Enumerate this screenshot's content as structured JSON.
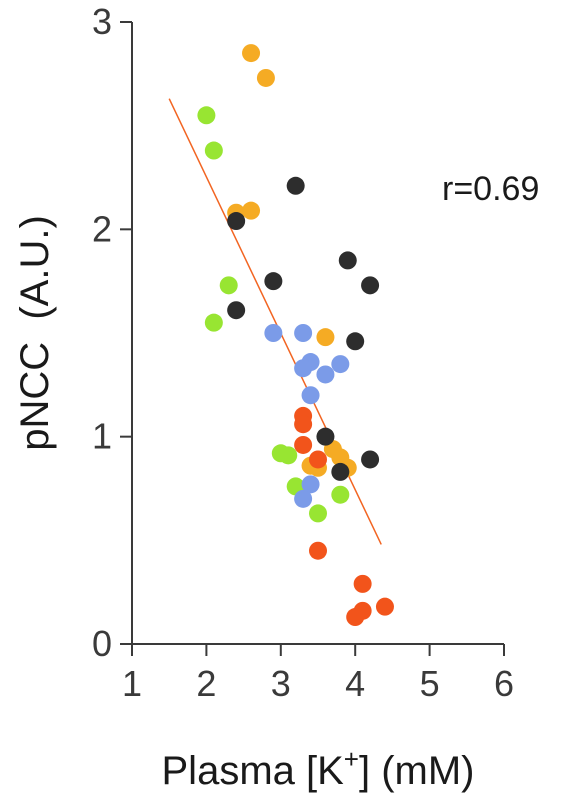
{
  "chart_data": {
    "type": "scatter",
    "xlabel": "Plasma [K+] (mM)",
    "ylabel": "pNCC  (A.U.)",
    "xlim": [
      1,
      6
    ],
    "ylim": [
      0,
      3
    ],
    "x_ticks": [
      "1",
      "2",
      "3",
      "4",
      "5",
      "6"
    ],
    "y_ticks": [
      "0",
      "1",
      "2",
      "3"
    ],
    "annotation": "r=0.69",
    "grid": false,
    "legend": "none",
    "trendline": {
      "x": [
        1.5,
        4.35
      ],
      "y": [
        2.63,
        0.48
      ],
      "color": "#f26522"
    },
    "series": [
      {
        "color": "#f5ab24",
        "points": [
          {
            "x": 2.6,
            "y": 2.85
          },
          {
            "x": 2.8,
            "y": 2.73
          },
          {
            "x": 2.4,
            "y": 2.08
          },
          {
            "x": 2.6,
            "y": 2.09
          },
          {
            "x": 3.6,
            "y": 1.48
          },
          {
            "x": 3.7,
            "y": 0.94
          },
          {
            "x": 3.8,
            "y": 0.9
          },
          {
            "x": 3.9,
            "y": 0.85
          },
          {
            "x": 3.5,
            "y": 0.85
          },
          {
            "x": 3.4,
            "y": 0.86
          }
        ]
      },
      {
        "color": "#98e532",
        "points": [
          {
            "x": 2.0,
            "y": 2.55
          },
          {
            "x": 2.1,
            "y": 2.38
          },
          {
            "x": 2.3,
            "y": 1.73
          },
          {
            "x": 2.1,
            "y": 1.55
          },
          {
            "x": 3.0,
            "y": 0.92
          },
          {
            "x": 3.1,
            "y": 0.91
          },
          {
            "x": 3.2,
            "y": 0.76
          },
          {
            "x": 3.5,
            "y": 0.63
          },
          {
            "x": 3.8,
            "y": 0.72
          }
        ]
      },
      {
        "color": "#2d2d2d",
        "points": [
          {
            "x": 3.2,
            "y": 2.21
          },
          {
            "x": 2.4,
            "y": 2.04
          },
          {
            "x": 2.9,
            "y": 1.75
          },
          {
            "x": 2.4,
            "y": 1.61
          },
          {
            "x": 3.9,
            "y": 1.85
          },
          {
            "x": 4.2,
            "y": 1.73
          },
          {
            "x": 4.0,
            "y": 1.46
          },
          {
            "x": 3.6,
            "y": 1.0
          },
          {
            "x": 3.8,
            "y": 0.83
          },
          {
            "x": 4.2,
            "y": 0.89
          }
        ]
      },
      {
        "color": "#7b9be8",
        "points": [
          {
            "x": 2.9,
            "y": 1.5
          },
          {
            "x": 3.3,
            "y": 1.5
          },
          {
            "x": 3.4,
            "y": 1.36
          },
          {
            "x": 3.3,
            "y": 1.33
          },
          {
            "x": 3.6,
            "y": 1.3
          },
          {
            "x": 3.8,
            "y": 1.35
          },
          {
            "x": 3.4,
            "y": 1.2
          },
          {
            "x": 3.4,
            "y": 0.77
          },
          {
            "x": 3.3,
            "y": 0.7
          }
        ]
      },
      {
        "color": "#f2541b",
        "points": [
          {
            "x": 3.3,
            "y": 1.1
          },
          {
            "x": 3.3,
            "y": 1.06
          },
          {
            "x": 3.3,
            "y": 0.96
          },
          {
            "x": 3.5,
            "y": 0.89
          },
          {
            "x": 3.5,
            "y": 0.45
          },
          {
            "x": 4.1,
            "y": 0.29
          },
          {
            "x": 4.1,
            "y": 0.16
          },
          {
            "x": 4.0,
            "y": 0.13
          },
          {
            "x": 4.4,
            "y": 0.18
          }
        ]
      }
    ]
  }
}
